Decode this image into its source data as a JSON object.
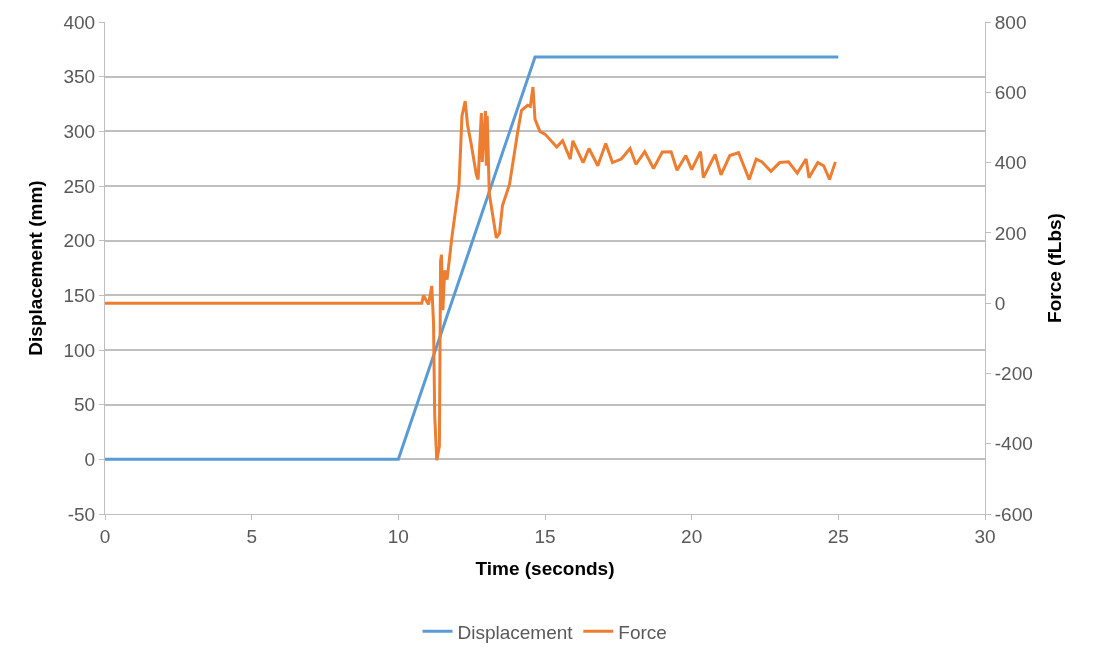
{
  "chart_data": {
    "type": "line",
    "xlabel": "Time (seconds)",
    "ylabel": "Displacement (mm)",
    "y2label": "Force (fLbs)",
    "xlim": [
      0,
      30
    ],
    "xticks": [
      0,
      5,
      10,
      15,
      20,
      25,
      30
    ],
    "ylim": [
      -50,
      400
    ],
    "yticks": [
      -50,
      0,
      50,
      100,
      150,
      200,
      250,
      300,
      350,
      400
    ],
    "y2lim": [
      -600,
      800
    ],
    "y2ticks": [
      -600,
      -400,
      -200,
      0,
      200,
      400,
      600,
      800
    ],
    "grid": "y",
    "legend": "bottom",
    "marker": "none",
    "line_style": "solid",
    "series": [
      {
        "name": "Displacement",
        "color": "#5b9bd5",
        "x": [
          0,
          10,
          14.66,
          25
        ],
        "values": [
          0,
          0,
          368,
          368
        ]
      },
      {
        "name": "Force",
        "color": "#ed7d31",
        "axis": "y2",
        "x": [
          0,
          10.8,
          10.86,
          11.03,
          11.14,
          11.2,
          11.24,
          11.31,
          11.4,
          11.44,
          11.47,
          11.52,
          11.58,
          11.66,
          11.83,
          12.07,
          12.17,
          12.28,
          12.36,
          12.48,
          12.66,
          12.72,
          12.83,
          12.86,
          12.97,
          13.0,
          13.03,
          13.1,
          13.34,
          13.45,
          13.55,
          13.79,
          14.07,
          14.2,
          14.41,
          14.5,
          14.59,
          14.66,
          14.83,
          15.0,
          15.4,
          15.6,
          15.86,
          15.95,
          16.3,
          16.5,
          16.8,
          17.07,
          17.3,
          17.6,
          17.9,
          18.1,
          18.4,
          18.7,
          19.0,
          19.3,
          19.5,
          19.8,
          20.0,
          20.3,
          20.4,
          20.8,
          21.0,
          21.3,
          21.6,
          21.96,
          22.2,
          22.4,
          22.7,
          23.0,
          23.3,
          23.6,
          23.9,
          24.0,
          24.3,
          24.5,
          24.7,
          24.9
        ],
        "values": [
          0,
          0,
          22,
          -4,
          49,
          -56,
          -320,
          -447,
          -407,
          120,
          138,
          -20,
          93,
          67,
          190,
          338,
          533,
          575,
          507,
          454,
          365,
          352,
          541,
          402,
          547,
          391,
          533,
          312,
          186,
          199,
          278,
          338,
          488,
          549,
          563,
          560,
          615,
          523,
          488,
          481,
          444,
          462,
          410,
          462,
          400,
          440,
          391,
          454,
          400,
          410,
          440,
          395,
          431,
          383,
          430,
          431,
          378,
          420,
          380,
          431,
          357,
          423,
          365,
          420,
          428,
          352,
          410,
          402,
          375,
          400,
          402,
          370,
          410,
          357,
          400,
          391,
          352,
          402
        ]
      }
    ]
  }
}
